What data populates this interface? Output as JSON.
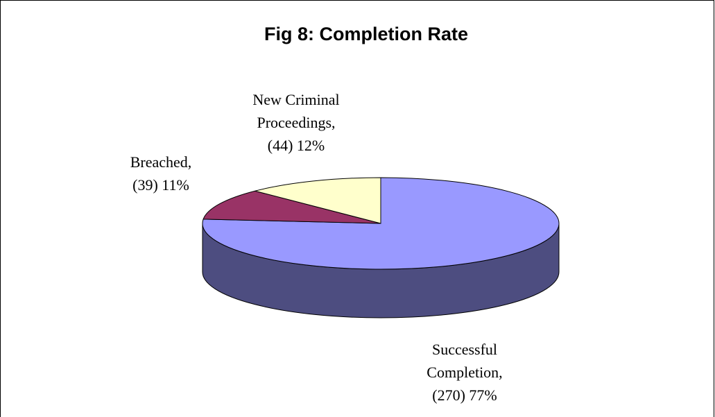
{
  "chart_data": {
    "type": "pie3d",
    "title": "Fig 8: Completion Rate",
    "categories": [
      "Successful Completion,",
      "Breached,",
      "New Criminal Proceedings,"
    ],
    "values": [
      270,
      39,
      44
    ],
    "value_labels": [
      "(270) 77%",
      "(39) 11%",
      "(44) 12%"
    ],
    "colors": [
      "#9999ff",
      "#993366",
      "#ffffcc"
    ]
  }
}
